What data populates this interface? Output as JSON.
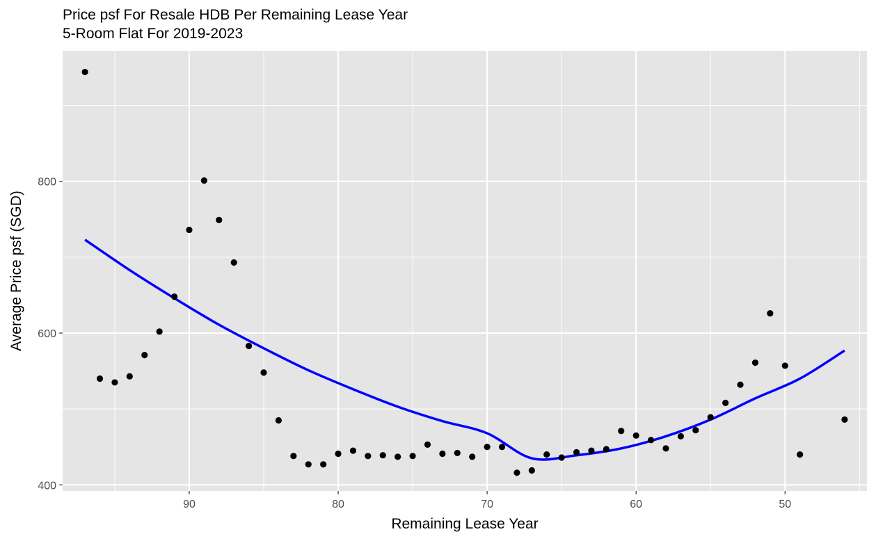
{
  "chart_data": {
    "type": "scatter",
    "title": "Price psf For Resale HDB Per Remaining Lease Year",
    "subtitle": "5-Room Flat For 2019-2023",
    "xlabel": "Remaining Lease Year",
    "ylabel": "Average Price psf (SGD)",
    "x_reversed": true,
    "xlim": [
      98.5,
      44.5
    ],
    "ylim": [
      392,
      972
    ],
    "x_ticks": [
      90,
      80,
      70,
      60,
      50
    ],
    "x_tick_labels": [
      "90",
      "80",
      "70",
      "60",
      "50"
    ],
    "y_ticks": [
      400,
      600,
      800
    ],
    "y_tick_labels": [
      "400",
      "600",
      "800"
    ],
    "grid": true,
    "points": {
      "x": [
        97,
        96,
        95,
        94,
        93,
        92,
        91,
        90,
        89,
        88,
        87,
        86,
        85,
        84,
        83,
        82,
        81,
        80,
        79,
        78,
        77,
        76,
        75,
        74,
        73,
        72,
        71,
        70,
        69,
        68,
        67,
        66,
        65,
        64,
        63,
        62,
        61,
        60,
        59,
        58,
        57,
        56,
        55,
        54,
        53,
        52,
        51,
        50,
        49,
        46
      ],
      "y": [
        944,
        540,
        535,
        543,
        571,
        602,
        648,
        736,
        801,
        749,
        693,
        583,
        548,
        485,
        438,
        427,
        427,
        441,
        445,
        438,
        439,
        437,
        438,
        453,
        441,
        442,
        437,
        450,
        450,
        416,
        419,
        440,
        436,
        443,
        445,
        447,
        471,
        465,
        459,
        448,
        464,
        472,
        489,
        508,
        532,
        561,
        626,
        557,
        440,
        486
      ]
    },
    "trend": {
      "name": "",
      "method": "quadratic fit",
      "color": "#0000ff",
      "x": [
        97,
        94,
        91,
        88,
        85,
        82,
        79,
        76,
        73,
        70,
        67,
        64,
        61,
        58,
        55,
        52,
        49,
        46
      ],
      "y": [
        723,
        683,
        646,
        611,
        580,
        551,
        526,
        503,
        484,
        468,
        435,
        439,
        448,
        464,
        486,
        514,
        540,
        577
      ]
    },
    "colors": {
      "panel_background": "#e5e5e5",
      "grid_major": "#ffffff",
      "point": "#000000",
      "trend_line": "#0000ff",
      "axis_text": "#4d4d4d"
    }
  }
}
